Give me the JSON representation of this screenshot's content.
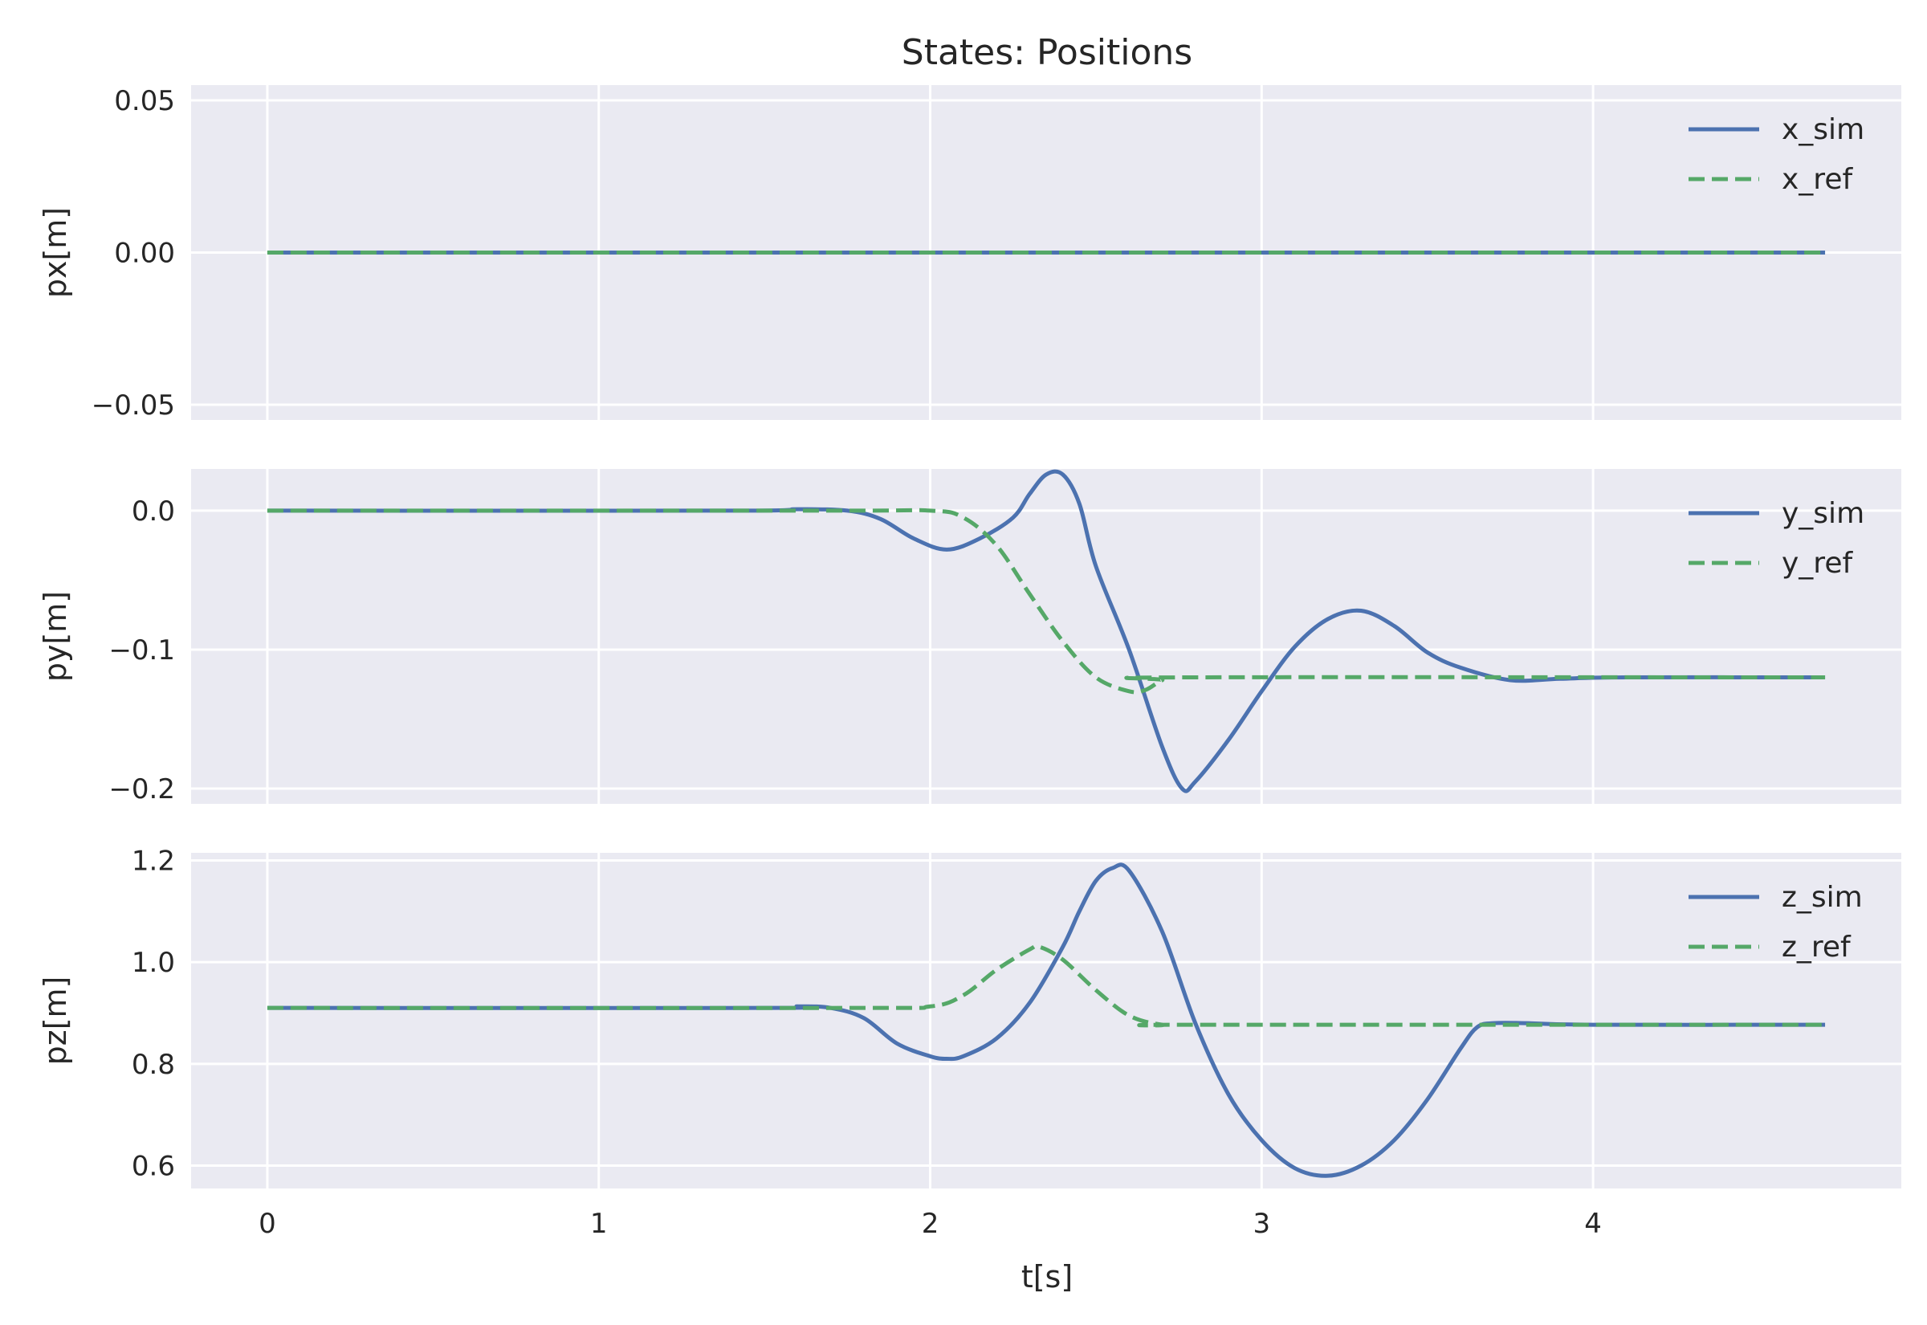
{
  "figure": {
    "title": "States: Positions",
    "xlabel": "t[s]",
    "background": "#ffffff",
    "panel_color": "#eaeaf2",
    "grid_color": "#ffffff",
    "text_color": "#262626"
  },
  "chart_data": [
    {
      "type": "line",
      "title": "States: Positions",
      "xlabel": "",
      "ylabel": "px[m]",
      "xlim": [
        -0.23,
        4.93
      ],
      "ylim": [
        -0.055,
        0.055
      ],
      "xticks": [
        0,
        1,
        2,
        3,
        4
      ],
      "xtick_labels": [
        "0",
        "1",
        "2",
        "3",
        "4"
      ],
      "yticks": [
        0.05,
        0.0,
        -0.05
      ],
      "ytick_labels": [
        "0.05",
        "0.00",
        "−0.05"
      ],
      "grid": true,
      "legend_position": "top-right",
      "series": [
        {
          "name": "x_sim",
          "style": "solid",
          "color": "#4c72b0",
          "x": [
            0,
            4.7
          ],
          "y": [
            0,
            0
          ]
        },
        {
          "name": "x_ref",
          "style": "dashed",
          "color": "#55a868",
          "x": [
            0,
            4.7
          ],
          "y": [
            0,
            0
          ]
        }
      ]
    },
    {
      "type": "line",
      "title": "",
      "xlabel": "",
      "ylabel": "py[m]",
      "xlim": [
        -0.23,
        4.93
      ],
      "ylim": [
        -0.211,
        0.03
      ],
      "xticks": [
        0,
        1,
        2,
        3,
        4
      ],
      "xtick_labels": [
        "0",
        "1",
        "2",
        "3",
        "4"
      ],
      "yticks": [
        0.0,
        -0.1,
        -0.2
      ],
      "ytick_labels": [
        "0.0",
        "−0.1",
        "−0.2"
      ],
      "grid": true,
      "legend_position": "top-right",
      "series": [
        {
          "name": "y_sim",
          "style": "solid",
          "color": "#4c72b0",
          "x": [
            0,
            1.4,
            1.6,
            1.75,
            1.85,
            1.95,
            2.05,
            2.15,
            2.25,
            2.3,
            2.35,
            2.4,
            2.45,
            2.5,
            2.6,
            2.7,
            2.76,
            2.8,
            2.9,
            3.0,
            3.1,
            3.2,
            3.3,
            3.4,
            3.5,
            3.6,
            3.75,
            3.9,
            4.1,
            4.7
          ],
          "y": [
            0,
            0,
            0.001,
            0,
            -0.006,
            -0.02,
            -0.028,
            -0.02,
            -0.005,
            0.012,
            0.026,
            0.026,
            0.005,
            -0.04,
            -0.1,
            -0.17,
            -0.2,
            -0.195,
            -0.165,
            -0.13,
            -0.098,
            -0.078,
            -0.072,
            -0.083,
            -0.102,
            -0.113,
            -0.122,
            -0.121,
            -0.12,
            -0.12
          ]
        },
        {
          "name": "y_ref",
          "style": "dashed",
          "color": "#55a868",
          "x": [
            0,
            1.7,
            2.0,
            2.1,
            2.2,
            2.3,
            2.4,
            2.5,
            2.6,
            2.65,
            2.7,
            2.75,
            4.7
          ],
          "y": [
            0,
            0,
            0,
            -0.005,
            -0.025,
            -0.06,
            -0.094,
            -0.12,
            -0.13,
            -0.129,
            -0.122,
            -0.12,
            -0.12
          ]
        }
      ]
    },
    {
      "type": "line",
      "title": "",
      "xlabel": "t[s]",
      "ylabel": "pz[m]",
      "xlim": [
        -0.23,
        4.93
      ],
      "ylim": [
        0.555,
        1.215
      ],
      "xticks": [
        0,
        1,
        2,
        3,
        4
      ],
      "xtick_labels": [
        "0",
        "1",
        "2",
        "3",
        "4"
      ],
      "yticks": [
        1.2,
        1.0,
        0.8,
        0.6
      ],
      "ytick_labels": [
        "1.2",
        "1.0",
        "0.8",
        "0.6"
      ],
      "grid": true,
      "legend_position": "top-right",
      "series": [
        {
          "name": "z_sim",
          "style": "solid",
          "color": "#4c72b0",
          "x": [
            0,
            1.5,
            1.6,
            1.7,
            1.8,
            1.9,
            2.0,
            2.05,
            2.1,
            2.2,
            2.3,
            2.4,
            2.45,
            2.5,
            2.55,
            2.6,
            2.7,
            2.8,
            2.9,
            3.0,
            3.1,
            3.2,
            3.3,
            3.4,
            3.5,
            3.6,
            3.65,
            3.7,
            3.8,
            4.0,
            4.7
          ],
          "y": [
            0.91,
            0.91,
            0.913,
            0.91,
            0.89,
            0.84,
            0.815,
            0.81,
            0.815,
            0.85,
            0.92,
            1.03,
            1.1,
            1.16,
            1.185,
            1.18,
            1.06,
            0.88,
            0.74,
            0.65,
            0.595,
            0.58,
            0.6,
            0.65,
            0.73,
            0.83,
            0.872,
            0.88,
            0.88,
            0.877,
            0.877
          ]
        },
        {
          "name": "z_ref",
          "style": "dashed",
          "color": "#55a868",
          "x": [
            0,
            1.75,
            2.0,
            2.1,
            2.2,
            2.3,
            2.33,
            2.4,
            2.5,
            2.6,
            2.7,
            2.8,
            4.7
          ],
          "y": [
            0.91,
            0.91,
            0.913,
            0.935,
            0.985,
            1.025,
            1.03,
            1.005,
            0.945,
            0.895,
            0.877,
            0.877,
            0.877
          ]
        }
      ]
    }
  ]
}
